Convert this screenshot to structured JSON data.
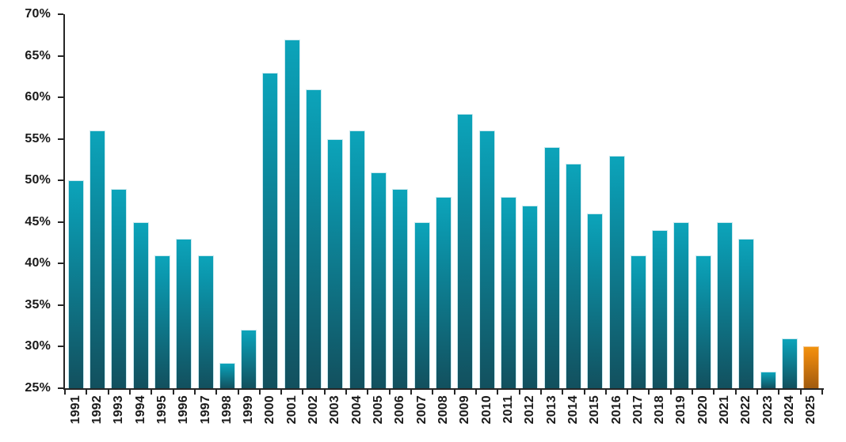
{
  "chart_data": {
    "type": "bar",
    "title": "",
    "xlabel": "",
    "ylabel": "",
    "categories": [
      "1991",
      "1992",
      "1993",
      "1994",
      "1995",
      "1996",
      "1997",
      "1998",
      "1999",
      "2000",
      "2001",
      "2002",
      "2003",
      "2004",
      "2005",
      "2006",
      "2007",
      "2008",
      "2009",
      "2010",
      "2011",
      "2012",
      "2013",
      "2014",
      "2015",
      "2016",
      "2017",
      "2018",
      "2019",
      "2020",
      "2021",
      "2022",
      "2023",
      "2024",
      "2025"
    ],
    "values": [
      50,
      56,
      49,
      45,
      41,
      43,
      41,
      28,
      32,
      63,
      67,
      61,
      55,
      56,
      51,
      49,
      45,
      48,
      58,
      56,
      48,
      47,
      54,
      52,
      46,
      53,
      41,
      44,
      45,
      41,
      45,
      43,
      27,
      31,
      30
    ],
    "unit": "%",
    "ylim": [
      25,
      70
    ],
    "ytick_step": 5,
    "ytick_labels": [
      "25%",
      "30%",
      "35%",
      "40%",
      "45%",
      "50%",
      "55%",
      "60%",
      "65%",
      "70%"
    ],
    "grid": false,
    "legend": "none",
    "highlight_category": "2025",
    "colors": {
      "bar_top": "#0ca4ba",
      "bar_bottom": "#12505e",
      "highlight_top": "#f0930e",
      "highlight_bottom": "#a15b0e",
      "axis": "#262626",
      "label": "#1a1a1a"
    }
  }
}
